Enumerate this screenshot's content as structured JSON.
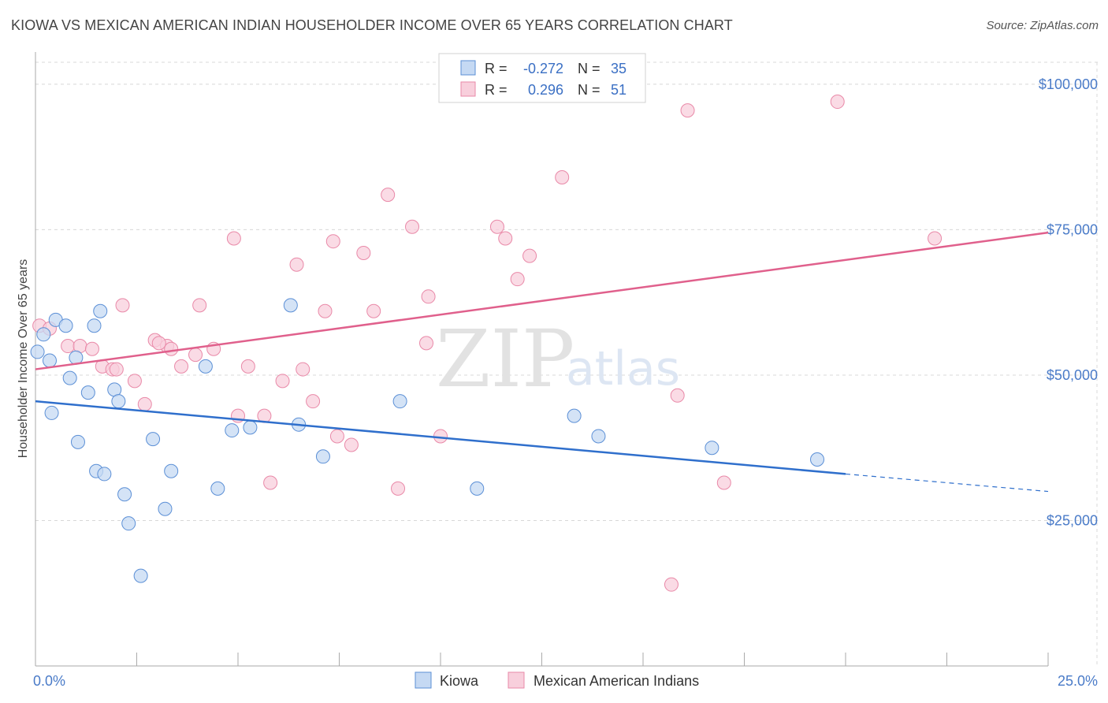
{
  "title": "KIOWA VS MEXICAN AMERICAN INDIAN HOUSEHOLDER INCOME OVER 65 YEARS CORRELATION CHART",
  "source": "Source: ZipAtlas.com",
  "watermark": {
    "zip": "ZIP",
    "atlas": "atlas"
  },
  "colors": {
    "blue": "#5b8fd6",
    "blue_fill": "#c5d9f3",
    "blue_line": "#2f6fcc",
    "pink": "#e989a8",
    "pink_fill": "#f8cfdc",
    "pink_line": "#e0608c",
    "tick": "#4a7bc8",
    "grid": "#d8d8d8"
  },
  "legend_top": [
    {
      "r_label": "R =",
      "r_value": "-0.272",
      "n_label": "N =",
      "n_value": "35"
    },
    {
      "r_label": "R =",
      "r_value": "0.296",
      "n_label": "N =",
      "n_value": "51"
    }
  ],
  "legend_bottom": [
    "Kiowa",
    "Mexican American Indians"
  ],
  "chart_data": {
    "type": "scatter",
    "title": "KIOWA VS MEXICAN AMERICAN INDIAN HOUSEHOLDER INCOME OVER 65 YEARS CORRELATION CHART",
    "xlabel": "",
    "ylabel": "Householder Income Over 65 years",
    "xlim": [
      0,
      25
    ],
    "ylim": [
      0,
      105000
    ],
    "x_tick_labels": [
      "0.0%",
      "25.0%"
    ],
    "y_ticks": [
      25000,
      50000,
      75000,
      100000
    ],
    "y_tick_labels": [
      "$25,000",
      "$50,000",
      "$75,000",
      "$100,000"
    ],
    "series": [
      {
        "name": "Kiowa",
        "r": -0.272,
        "n": 35,
        "points": [
          [
            0.05,
            54000
          ],
          [
            0.2,
            57000
          ],
          [
            0.35,
            52500
          ],
          [
            0.5,
            59500
          ],
          [
            0.75,
            58500
          ],
          [
            0.85,
            49500
          ],
          [
            1.0,
            53000
          ],
          [
            1.05,
            38500
          ],
          [
            1.3,
            47000
          ],
          [
            1.45,
            58500
          ],
          [
            1.5,
            33500
          ],
          [
            1.6,
            61000
          ],
          [
            1.7,
            33000
          ],
          [
            1.95,
            47500
          ],
          [
            2.05,
            45500
          ],
          [
            2.2,
            29500
          ],
          [
            2.3,
            24500
          ],
          [
            2.6,
            15500
          ],
          [
            2.9,
            39000
          ],
          [
            3.2,
            27000
          ],
          [
            3.35,
            33500
          ],
          [
            4.2,
            51500
          ],
          [
            4.5,
            30500
          ],
          [
            4.85,
            40500
          ],
          [
            5.3,
            41000
          ],
          [
            6.3,
            62000
          ],
          [
            6.5,
            41500
          ],
          [
            7.1,
            36000
          ],
          [
            9.0,
            45500
          ],
          [
            10.9,
            30500
          ],
          [
            13.3,
            43000
          ],
          [
            13.9,
            39500
          ],
          [
            16.7,
            37500
          ],
          [
            19.3,
            35500
          ],
          [
            0.4,
            43500
          ]
        ],
        "trend": {
          "x0": 0,
          "y0": 45500,
          "x1": 20,
          "y1": 33000,
          "dash_x1": 25,
          "dash_y1": 30000
        }
      },
      {
        "name": "Mexican American Indians",
        "r": 0.296,
        "n": 51,
        "points": [
          [
            0.1,
            58500
          ],
          [
            0.35,
            58000
          ],
          [
            0.8,
            55000
          ],
          [
            1.1,
            55000
          ],
          [
            1.4,
            54500
          ],
          [
            1.65,
            51500
          ],
          [
            1.9,
            51000
          ],
          [
            2.15,
            62000
          ],
          [
            2.45,
            49000
          ],
          [
            2.7,
            45000
          ],
          [
            2.95,
            56000
          ],
          [
            3.25,
            55000
          ],
          [
            3.35,
            54500
          ],
          [
            3.6,
            51500
          ],
          [
            3.95,
            53500
          ],
          [
            4.05,
            62000
          ],
          [
            4.4,
            54500
          ],
          [
            4.9,
            73500
          ],
          [
            5.0,
            43000
          ],
          [
            5.25,
            51500
          ],
          [
            5.65,
            43000
          ],
          [
            5.8,
            31500
          ],
          [
            6.1,
            49000
          ],
          [
            6.45,
            69000
          ],
          [
            6.6,
            51000
          ],
          [
            6.85,
            45500
          ],
          [
            7.15,
            61000
          ],
          [
            7.35,
            73000
          ],
          [
            7.45,
            39500
          ],
          [
            7.8,
            38000
          ],
          [
            8.1,
            71000
          ],
          [
            8.35,
            61000
          ],
          [
            8.7,
            81000
          ],
          [
            8.95,
            30500
          ],
          [
            9.3,
            75500
          ],
          [
            9.65,
            55500
          ],
          [
            9.7,
            63500
          ],
          [
            10.0,
            39500
          ],
          [
            11.4,
            75500
          ],
          [
            11.6,
            73500
          ],
          [
            11.9,
            66500
          ],
          [
            12.2,
            70500
          ],
          [
            13.0,
            84000
          ],
          [
            15.7,
            14000
          ],
          [
            15.85,
            46500
          ],
          [
            16.1,
            95500
          ],
          [
            17.0,
            31500
          ],
          [
            19.8,
            97000
          ],
          [
            22.2,
            73500
          ],
          [
            3.05,
            55500
          ],
          [
            2.0,
            51000
          ]
        ],
        "trend": {
          "x0": 0,
          "y0": 51000,
          "x1": 25,
          "y1": 74500
        }
      }
    ]
  }
}
